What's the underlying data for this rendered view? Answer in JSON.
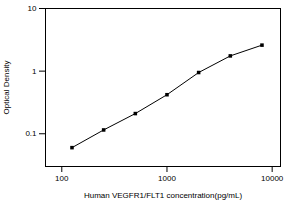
{
  "chart_data": {
    "type": "line",
    "x_label": "Human VEGFR1/FLT1 concentration(pg/mL)",
    "y_label": "Optical Density",
    "x": [
      125,
      250,
      500,
      1000,
      2000,
      4000,
      8000
    ],
    "values": [
      0.06,
      0.115,
      0.21,
      0.42,
      0.95,
      1.75,
      2.6
    ],
    "color": "#000000",
    "marker": "square",
    "line_style": "solid",
    "log": true,
    "xlim": [
      70,
      12000
    ],
    "xticks": [
      100,
      1000,
      10000
    ],
    "ylim": [
      0.03,
      10
    ],
    "yticks": [
      0.1,
      1,
      10
    ],
    "grid": false
  }
}
